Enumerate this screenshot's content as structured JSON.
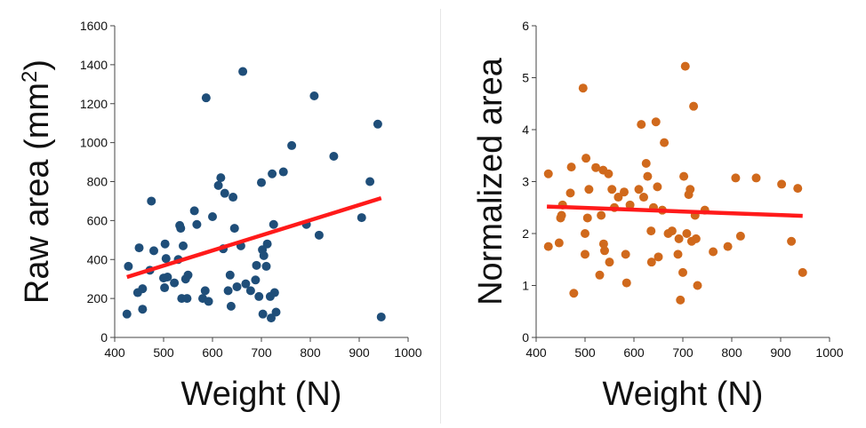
{
  "chart_data": [
    {
      "type": "scatter",
      "title": "",
      "xlabel": "Weight (N)",
      "ylabel": "Raw area (mm²)",
      "ylabel_parts": {
        "base": "Raw area (mm",
        "sup": "2",
        "end": ")"
      },
      "xlim": [
        400,
        1000
      ],
      "ylim": [
        0,
        1600
      ],
      "xticks": [
        "400",
        "500",
        "600",
        "700",
        "800",
        "900",
        "1000"
      ],
      "yticks": [
        "0",
        "200",
        "400",
        "600",
        "800",
        "1000",
        "1200",
        "1400",
        "1600"
      ],
      "grid": false,
      "point_color": "#1f4e79",
      "trend_color": "#ff1a1a",
      "trendline": {
        "x": [
          425,
          945
        ],
        "y": [
          310,
          715
        ]
      },
      "points": [
        [
          425,
          120
        ],
        [
          428,
          365
        ],
        [
          447,
          230
        ],
        [
          450,
          460
        ],
        [
          457,
          250
        ],
        [
          457,
          145
        ],
        [
          472,
          345
        ],
        [
          475,
          700
        ],
        [
          480,
          445
        ],
        [
          500,
          305
        ],
        [
          502,
          255
        ],
        [
          503,
          480
        ],
        [
          505,
          405
        ],
        [
          508,
          310
        ],
        [
          522,
          280
        ],
        [
          530,
          400
        ],
        [
          533,
          575
        ],
        [
          535,
          560
        ],
        [
          537,
          200
        ],
        [
          540,
          470
        ],
        [
          545,
          300
        ],
        [
          548,
          200
        ],
        [
          550,
          320
        ],
        [
          563,
          650
        ],
        [
          568,
          580
        ],
        [
          580,
          200
        ],
        [
          585,
          240
        ],
        [
          587,
          1230
        ],
        [
          592,
          185
        ],
        [
          600,
          620
        ],
        [
          612,
          780
        ],
        [
          617,
          820
        ],
        [
          622,
          455
        ],
        [
          625,
          740
        ],
        [
          632,
          240
        ],
        [
          636,
          320
        ],
        [
          638,
          160
        ],
        [
          642,
          720
        ],
        [
          645,
          560
        ],
        [
          650,
          260
        ],
        [
          658,
          470
        ],
        [
          662,
          1365
        ],
        [
          668,
          275
        ],
        [
          678,
          240
        ],
        [
          688,
          295
        ],
        [
          690,
          370
        ],
        [
          695,
          210
        ],
        [
          700,
          795
        ],
        [
          702,
          450
        ],
        [
          703,
          120
        ],
        [
          705,
          420
        ],
        [
          710,
          365
        ],
        [
          712,
          480
        ],
        [
          718,
          210
        ],
        [
          720,
          100
        ],
        [
          722,
          840
        ],
        [
          725,
          580
        ],
        [
          727,
          230
        ],
        [
          730,
          130
        ],
        [
          745,
          850
        ],
        [
          762,
          985
        ],
        [
          792,
          580
        ],
        [
          808,
          1240
        ],
        [
          818,
          525
        ],
        [
          848,
          930
        ],
        [
          905,
          615
        ],
        [
          922,
          800
        ],
        [
          938,
          1095
        ],
        [
          945,
          105
        ]
      ]
    },
    {
      "type": "scatter",
      "title": "",
      "xlabel": "Weight (N)",
      "ylabel": "Normalized area",
      "xlim": [
        400,
        1000
      ],
      "ylim": [
        0,
        6
      ],
      "xticks": [
        "400",
        "500",
        "600",
        "700",
        "800",
        "900",
        "1000"
      ],
      "yticks": [
        "0",
        "1",
        "2",
        "3",
        "4",
        "5",
        "6"
      ],
      "grid": false,
      "point_color": "#d0691c",
      "trend_color": "#ff1a1a",
      "trendline": {
        "x": [
          422,
          945
        ],
        "y": [
          2.52,
          2.34
        ]
      },
      "points": [
        [
          425,
          3.15
        ],
        [
          425,
          1.75
        ],
        [
          447,
          1.82
        ],
        [
          450,
          2.3
        ],
        [
          452,
          2.35
        ],
        [
          454,
          2.55
        ],
        [
          470,
          2.78
        ],
        [
          472,
          3.28
        ],
        [
          477,
          0.85
        ],
        [
          496,
          4.8
        ],
        [
          500,
          2.0
        ],
        [
          500,
          1.6
        ],
        [
          502,
          3.45
        ],
        [
          505,
          2.3
        ],
        [
          508,
          2.85
        ],
        [
          522,
          3.27
        ],
        [
          530,
          1.2
        ],
        [
          533,
          2.35
        ],
        [
          537,
          3.22
        ],
        [
          538,
          1.8
        ],
        [
          540,
          1.67
        ],
        [
          548,
          3.15
        ],
        [
          550,
          1.45
        ],
        [
          555,
          2.85
        ],
        [
          560,
          2.5
        ],
        [
          568,
          2.7
        ],
        [
          580,
          2.8
        ],
        [
          583,
          1.6
        ],
        [
          585,
          1.05
        ],
        [
          592,
          2.55
        ],
        [
          610,
          2.85
        ],
        [
          615,
          4.1
        ],
        [
          620,
          2.7
        ],
        [
          625,
          3.35
        ],
        [
          628,
          3.1
        ],
        [
          635,
          2.05
        ],
        [
          636,
          1.45
        ],
        [
          640,
          2.5
        ],
        [
          645,
          4.15
        ],
        [
          648,
          2.9
        ],
        [
          650,
          1.55
        ],
        [
          658,
          2.45
        ],
        [
          662,
          3.75
        ],
        [
          670,
          2.0
        ],
        [
          678,
          2.05
        ],
        [
          690,
          1.6
        ],
        [
          692,
          1.9
        ],
        [
          695,
          0.72
        ],
        [
          700,
          1.25
        ],
        [
          702,
          3.1
        ],
        [
          705,
          5.22
        ],
        [
          708,
          2.0
        ],
        [
          712,
          2.75
        ],
        [
          715,
          2.85
        ],
        [
          718,
          1.85
        ],
        [
          722,
          4.45
        ],
        [
          725,
          2.35
        ],
        [
          727,
          1.9
        ],
        [
          730,
          1.0
        ],
        [
          745,
          2.45
        ],
        [
          762,
          1.65
        ],
        [
          792,
          1.75
        ],
        [
          808,
          3.07
        ],
        [
          818,
          1.95
        ],
        [
          850,
          3.07
        ],
        [
          902,
          2.95
        ],
        [
          922,
          1.85
        ],
        [
          935,
          2.87
        ],
        [
          945,
          1.25
        ]
      ]
    }
  ]
}
